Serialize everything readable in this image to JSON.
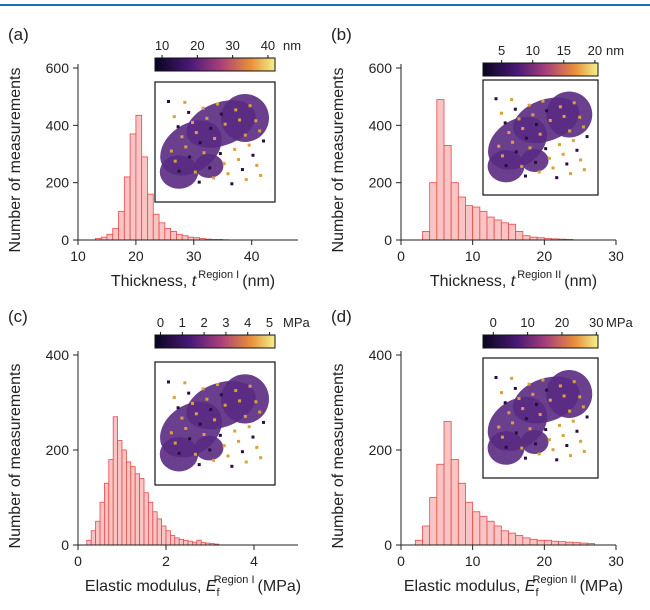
{
  "chart_data": [
    {
      "type": "histogram",
      "panel": "(a)",
      "xlabel": {
        "text": "Thickness, ",
        "var": "t",
        "sup": "Region I",
        "unit": "(nm)"
      },
      "ylabel": "Number of measurements",
      "bins": [
        13,
        14,
        15,
        16,
        17,
        18,
        19,
        20,
        21,
        22,
        23,
        24,
        25,
        26,
        27,
        28,
        29,
        30,
        31,
        32,
        33,
        34,
        35,
        36
      ],
      "counts": [
        5,
        10,
        20,
        40,
        100,
        220,
        370,
        435,
        290,
        160,
        90,
        60,
        40,
        30,
        20,
        15,
        10,
        8,
        5,
        3,
        2,
        2,
        1
      ],
      "xlim": [
        10,
        48
      ],
      "xticks": [
        10,
        20,
        30,
        40
      ],
      "ylim": [
        0,
        600
      ],
      "yticks": [
        0,
        200,
        400,
        600
      ],
      "colorbar": {
        "lim": [
          8,
          42
        ],
        "ticks": [
          10,
          20,
          30,
          40
        ],
        "unit": "nm"
      }
    },
    {
      "type": "histogram",
      "panel": "(b)",
      "xlabel": {
        "text": "Thickness, ",
        "var": "t",
        "sup": "Region II",
        "unit": "(nm)"
      },
      "ylabel": "Number of measurements",
      "bins": [
        3,
        4,
        5,
        6,
        7,
        8,
        9,
        10,
        11,
        12,
        13,
        14,
        15,
        16,
        17,
        18,
        19,
        20,
        21,
        22,
        23,
        24
      ],
      "counts": [
        30,
        200,
        490,
        330,
        200,
        150,
        120,
        115,
        100,
        80,
        70,
        60,
        55,
        30,
        15,
        10,
        8,
        5,
        4,
        3,
        2
      ],
      "xlim": [
        0,
        30
      ],
      "xticks": [
        0,
        10,
        20,
        30
      ],
      "ylim": [
        0,
        600
      ],
      "yticks": [
        0,
        200,
        400,
        600
      ],
      "colorbar": {
        "lim": [
          2,
          20.5
        ],
        "ticks": [
          5,
          10,
          15,
          20
        ],
        "unit": "nm"
      }
    },
    {
      "type": "histogram",
      "panel": "(c)",
      "xlabel": {
        "text": "Elastic modulus, ",
        "var": "E",
        "sub": "f",
        "sup": "Region I",
        "unit": "(MPa)"
      },
      "ylabel": "Number of measurements",
      "bins": [
        0.2,
        0.3,
        0.4,
        0.5,
        0.6,
        0.7,
        0.8,
        0.9,
        1.0,
        1.1,
        1.2,
        1.3,
        1.4,
        1.5,
        1.6,
        1.7,
        1.8,
        1.9,
        2.0,
        2.1,
        2.2,
        2.3,
        2.4,
        2.5,
        2.6,
        2.7,
        2.8,
        2.9,
        3.0,
        3.1,
        3.2
      ],
      "counts": [
        10,
        30,
        50,
        90,
        130,
        180,
        270,
        220,
        200,
        175,
        165,
        150,
        140,
        110,
        90,
        70,
        55,
        40,
        30,
        20,
        15,
        12,
        10,
        8,
        6,
        10,
        5,
        4,
        3,
        2
      ],
      "xlim": [
        0,
        5
      ],
      "xticks": [
        0,
        2,
        4
      ],
      "ylim": [
        0,
        400
      ],
      "yticks": [
        0,
        200,
        400
      ],
      "colorbar": {
        "lim": [
          -0.25,
          5.25
        ],
        "ticks": [
          0,
          1,
          2,
          3,
          4,
          5
        ],
        "unit": "MPa"
      }
    },
    {
      "type": "histogram",
      "panel": "(d)",
      "xlabel": {
        "text": "Elastic modulus, ",
        "var": "E",
        "sub": "f",
        "sup": "Region II",
        "unit": "(MPa)"
      },
      "ylabel": "Number of measurements",
      "bins": [
        2,
        3,
        4,
        5,
        6,
        7,
        8,
        9,
        10,
        11,
        12,
        13,
        14,
        15,
        16,
        17,
        18,
        19,
        20,
        21,
        22,
        23,
        24,
        25,
        26,
        27
      ],
      "counts": [
        10,
        40,
        100,
        170,
        260,
        180,
        130,
        90,
        70,
        60,
        50,
        40,
        30,
        25,
        20,
        15,
        12,
        10,
        10,
        8,
        7,
        6,
        5,
        4,
        3
      ],
      "xlim": [
        0,
        30
      ],
      "xticks": [
        0,
        10,
        20,
        30
      ],
      "ylim": [
        0,
        400
      ],
      "yticks": [
        0,
        200,
        400
      ],
      "colorbar": {
        "lim": [
          -3,
          30.5
        ],
        "ticks": [
          0,
          10,
          20,
          30
        ],
        "unit": "MPa"
      }
    }
  ]
}
